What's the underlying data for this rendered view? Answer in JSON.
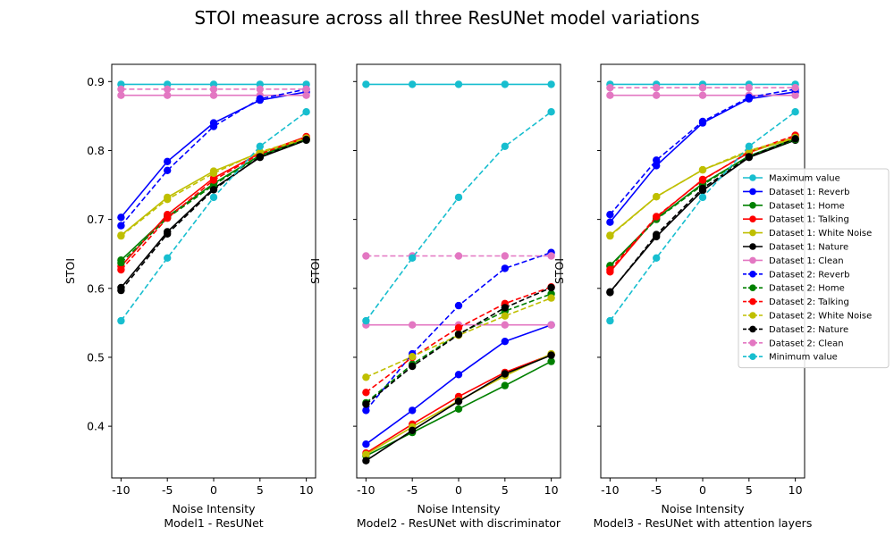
{
  "title": "STOI measure across all three ResUNet model variations",
  "ylabel": "STOI",
  "xlabel": "Noise Intensity",
  "x_ticks": [
    "-10",
    "-5",
    "0",
    "5",
    "10"
  ],
  "y_ticks": [
    "0.4",
    "0.5",
    "0.6",
    "0.7",
    "0.8",
    "0.9"
  ],
  "chart_data": [
    {
      "type": "line",
      "subtitle": "Model1 - ResUNet",
      "x": [
        -10,
        -5,
        0,
        5,
        10
      ],
      "ylim": [
        0.325,
        0.925
      ],
      "series": [
        {
          "name": "Maximum value",
          "color": "#17becf",
          "dashed": false,
          "values": [
            0.896,
            0.896,
            0.896,
            0.896,
            0.896
          ]
        },
        {
          "name": "Dataset 1: Reverb",
          "color": "#0000ff",
          "dashed": false,
          "values": [
            0.703,
            0.784,
            0.84,
            0.873,
            0.885
          ]
        },
        {
          "name": "Dataset 1: Home",
          "color": "#008000",
          "dashed": false,
          "values": [
            0.641,
            0.704,
            0.752,
            0.793,
            0.817
          ]
        },
        {
          "name": "Dataset 1: Talking",
          "color": "#ff0000",
          "dashed": false,
          "values": [
            0.632,
            0.707,
            0.76,
            0.796,
            0.82
          ]
        },
        {
          "name": "Dataset 1: White Noise",
          "color": "#bfbf00",
          "dashed": false,
          "values": [
            0.677,
            0.732,
            0.77,
            0.797,
            0.817
          ]
        },
        {
          "name": "Dataset 1: Nature",
          "color": "#000000",
          "dashed": false,
          "values": [
            0.601,
            0.682,
            0.745,
            0.79,
            0.815
          ]
        },
        {
          "name": "Dataset 1: Clean",
          "color": "#e377c2",
          "dashed": false,
          "values": [
            0.88,
            0.88,
            0.88,
            0.88,
            0.88
          ]
        },
        {
          "name": "Dataset 2: Reverb",
          "color": "#0000ff",
          "dashed": true,
          "values": [
            0.691,
            0.771,
            0.835,
            0.875,
            0.889
          ]
        },
        {
          "name": "Dataset 2: Home",
          "color": "#008000",
          "dashed": true,
          "values": [
            0.637,
            0.702,
            0.75,
            0.792,
            0.816
          ]
        },
        {
          "name": "Dataset 2: Talking",
          "color": "#ff0000",
          "dashed": true,
          "values": [
            0.627,
            0.702,
            0.757,
            0.795,
            0.819
          ]
        },
        {
          "name": "Dataset 2: White Noise",
          "color": "#bfbf00",
          "dashed": true,
          "values": [
            0.676,
            0.729,
            0.767,
            0.798,
            0.818
          ]
        },
        {
          "name": "Dataset 2: Nature",
          "color": "#000000",
          "dashed": true,
          "values": [
            0.597,
            0.679,
            0.743,
            0.791,
            0.816
          ]
        },
        {
          "name": "Dataset 2: Clean",
          "color": "#e377c2",
          "dashed": true,
          "values": [
            0.889,
            0.889,
            0.889,
            0.889,
            0.889
          ]
        },
        {
          "name": "Minimum value",
          "color": "#17becf",
          "dashed": true,
          "values": [
            0.553,
            0.644,
            0.732,
            0.806,
            0.856
          ]
        }
      ]
    },
    {
      "type": "line",
      "subtitle": "Model2 - ResUNet with discriminator",
      "x": [
        -10,
        -5,
        0,
        5,
        10
      ],
      "ylim": [
        0.325,
        0.925
      ],
      "series": [
        {
          "name": "Maximum value",
          "color": "#17becf",
          "dashed": false,
          "values": [
            0.896,
            0.896,
            0.896,
            0.896,
            0.896
          ]
        },
        {
          "name": "Dataset 1: Reverb",
          "color": "#0000ff",
          "dashed": false,
          "values": [
            0.374,
            0.423,
            0.475,
            0.523,
            0.547
          ]
        },
        {
          "name": "Dataset 1: Home",
          "color": "#008000",
          "dashed": false,
          "values": [
            0.357,
            0.391,
            0.425,
            0.459,
            0.494
          ]
        },
        {
          "name": "Dataset 1: Talking",
          "color": "#ff0000",
          "dashed": false,
          "values": [
            0.361,
            0.403,
            0.443,
            0.478,
            0.504
          ]
        },
        {
          "name": "Dataset 1: White Noise",
          "color": "#bfbf00",
          "dashed": false,
          "values": [
            0.359,
            0.399,
            0.437,
            0.473,
            0.505
          ]
        },
        {
          "name": "Dataset 1: Nature",
          "color": "#000000",
          "dashed": false,
          "values": [
            0.35,
            0.394,
            0.436,
            0.476,
            0.503
          ]
        },
        {
          "name": "Dataset 1: Clean",
          "color": "#e377c2",
          "dashed": false,
          "values": [
            0.547,
            0.547,
            0.547,
            0.547,
            0.547
          ]
        },
        {
          "name": "Dataset 2: Reverb",
          "color": "#0000ff",
          "dashed": true,
          "values": [
            0.423,
            0.505,
            0.575,
            0.629,
            0.652
          ]
        },
        {
          "name": "Dataset 2: Home",
          "color": "#008000",
          "dashed": true,
          "values": [
            0.434,
            0.49,
            0.534,
            0.567,
            0.592
          ]
        },
        {
          "name": "Dataset 2: Talking",
          "color": "#ff0000",
          "dashed": true,
          "values": [
            0.449,
            0.5,
            0.543,
            0.578,
            0.602
          ]
        },
        {
          "name": "Dataset 2: White Noise",
          "color": "#bfbf00",
          "dashed": true,
          "values": [
            0.471,
            0.501,
            0.532,
            0.56,
            0.586
          ]
        },
        {
          "name": "Dataset 2: Nature",
          "color": "#000000",
          "dashed": true,
          "values": [
            0.432,
            0.487,
            0.533,
            0.572,
            0.601
          ]
        },
        {
          "name": "Dataset 2: Clean",
          "color": "#e377c2",
          "dashed": true,
          "values": [
            0.647,
            0.647,
            0.647,
            0.647,
            0.647
          ]
        },
        {
          "name": "Minimum value",
          "color": "#17becf",
          "dashed": true,
          "values": [
            0.553,
            0.644,
            0.732,
            0.806,
            0.856
          ]
        }
      ]
    },
    {
      "type": "line",
      "subtitle": "Model3 - ResUNet with attention layers",
      "x": [
        -10,
        -5,
        0,
        5,
        10
      ],
      "ylim": [
        0.325,
        0.925
      ],
      "series": [
        {
          "name": "Maximum value",
          "color": "#17becf",
          "dashed": false,
          "values": [
            0.896,
            0.896,
            0.896,
            0.896,
            0.896
          ]
        },
        {
          "name": "Dataset 1: Reverb",
          "color": "#0000ff",
          "dashed": false,
          "values": [
            0.696,
            0.778,
            0.84,
            0.875,
            0.885
          ]
        },
        {
          "name": "Dataset 1: Home",
          "color": "#008000",
          "dashed": false,
          "values": [
            0.633,
            0.701,
            0.752,
            0.792,
            0.817
          ]
        },
        {
          "name": "Dataset 1: Talking",
          "color": "#ff0000",
          "dashed": false,
          "values": [
            0.624,
            0.703,
            0.758,
            0.797,
            0.82
          ]
        },
        {
          "name": "Dataset 1: White Noise",
          "color": "#bfbf00",
          "dashed": false,
          "values": [
            0.677,
            0.733,
            0.772,
            0.798,
            0.818
          ]
        },
        {
          "name": "Dataset 1: Nature",
          "color": "#000000",
          "dashed": false,
          "values": [
            0.595,
            0.675,
            0.742,
            0.79,
            0.815
          ]
        },
        {
          "name": "Dataset 1: Clean",
          "color": "#e377c2",
          "dashed": false,
          "values": [
            0.88,
            0.88,
            0.88,
            0.88,
            0.88
          ]
        },
        {
          "name": "Dataset 2: Reverb",
          "color": "#0000ff",
          "dashed": true,
          "values": [
            0.707,
            0.786,
            0.842,
            0.877,
            0.889
          ]
        },
        {
          "name": "Dataset 2: Home",
          "color": "#008000",
          "dashed": true,
          "values": [
            0.632,
            0.7,
            0.75,
            0.792,
            0.816
          ]
        },
        {
          "name": "Dataset 2: Talking",
          "color": "#ff0000",
          "dashed": true,
          "values": [
            0.627,
            0.704,
            0.757,
            0.798,
            0.822
          ]
        },
        {
          "name": "Dataset 2: White Noise",
          "color": "#bfbf00",
          "dashed": true,
          "values": [
            0.676,
            0.733,
            0.772,
            0.8,
            0.819
          ]
        },
        {
          "name": "Dataset 2: Nature",
          "color": "#000000",
          "dashed": true,
          "values": [
            0.594,
            0.678,
            0.745,
            0.791,
            0.817
          ]
        },
        {
          "name": "Dataset 2: Clean",
          "color": "#e377c2",
          "dashed": true,
          "values": [
            0.891,
            0.891,
            0.891,
            0.891,
            0.891
          ]
        },
        {
          "name": "Minimum value",
          "color": "#17becf",
          "dashed": true,
          "values": [
            0.553,
            0.644,
            0.732,
            0.806,
            0.856
          ]
        }
      ]
    }
  ]
}
